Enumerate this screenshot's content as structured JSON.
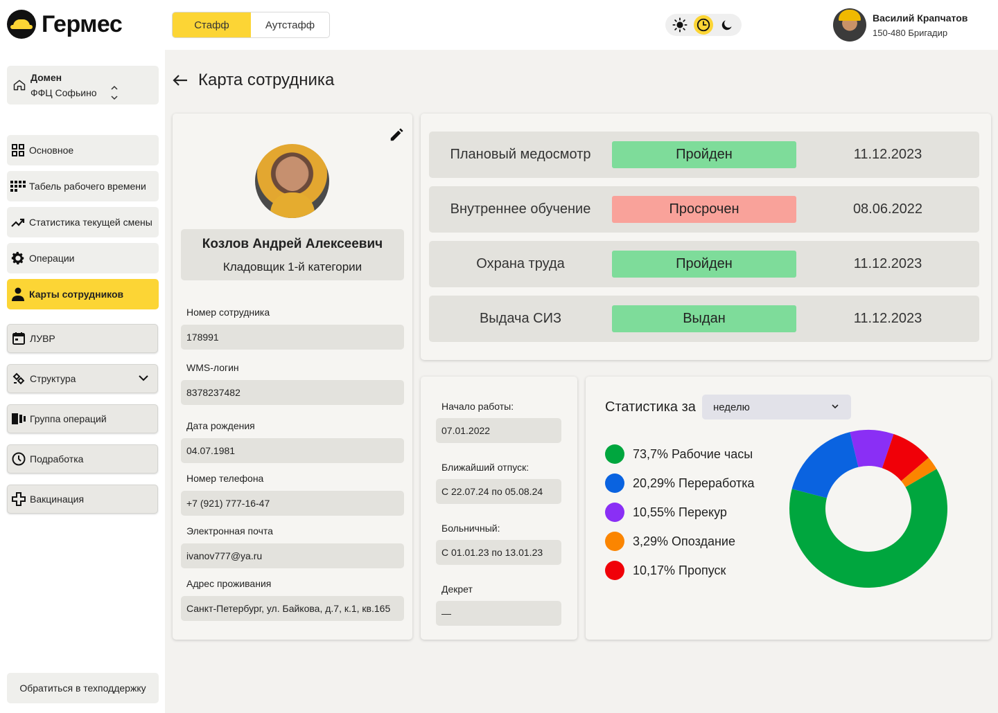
{
  "brand": {
    "name": "Гермес"
  },
  "header": {
    "tabs": [
      {
        "label": "Стафф",
        "active": true
      },
      {
        "label": "Аутстафф",
        "active": false
      }
    ],
    "theme_icons": [
      "sun-icon",
      "clock-icon",
      "moon-icon"
    ],
    "user": {
      "name": "Василий Крапчатов",
      "role": "150-480 Бригадир"
    }
  },
  "sidebar": {
    "domain": {
      "label": "Домен",
      "value": "ФФЦ Софьино"
    },
    "items": [
      {
        "label": "Основное",
        "icon": "grid-icon"
      },
      {
        "label": "Табель рабочего времени",
        "icon": "dots-grid-icon"
      },
      {
        "label": "Статистика текущей смены",
        "icon": "trending-up-icon"
      },
      {
        "label": "Операции",
        "icon": "gear-icon"
      },
      {
        "label": "Карты сотрудников",
        "icon": "person-icon",
        "active": true
      },
      {
        "label": "ЛУВР",
        "icon": "calendar-icon"
      },
      {
        "label": "Структура",
        "icon": "structure-icon"
      },
      {
        "label": "Группа операций",
        "icon": "group-icon"
      },
      {
        "label": "Подработка",
        "icon": "clock-icon"
      },
      {
        "label": "Вакцинация",
        "icon": "plus-cross-icon"
      }
    ],
    "support": "Обратиться в техподдержку"
  },
  "page": {
    "title": "Карта сотрудника"
  },
  "employee": {
    "name": "Козлов Андрей Алексеевич",
    "position": "Кладовщик 1-й категории",
    "fields": [
      {
        "label": "Номер сотрудника",
        "value": "178991"
      },
      {
        "label": "WMS-логин",
        "value": "8378237482"
      },
      {
        "label": "Дата рождения",
        "value": "04.07.1981"
      },
      {
        "label": "Номер телефона",
        "value": "+7 (921) 777-16-47"
      },
      {
        "label": "Электронная почта",
        "value": "ivanov777@ya.ru"
      },
      {
        "label": "Адрес проживания",
        "value": "Санкт-Петербург, ул. Байкова, д.7, к.1, кв.165"
      }
    ]
  },
  "checks": [
    {
      "title": "Плановый медосмотр",
      "status": "Пройден",
      "color": "#7edc9a",
      "date": "11.12.2023"
    },
    {
      "title": "Внутреннее обучение",
      "status": "Просрочен",
      "color": "#f9a29a",
      "date": "08.06.2022"
    },
    {
      "title": "Охрана труда",
      "status": "Пройден",
      "color": "#7edc9a",
      "date": "11.12.2023"
    },
    {
      "title": "Выдача СИЗ",
      "status": "Выдан",
      "color": "#7edc9a",
      "date": "11.12.2023"
    }
  ],
  "work_dates": [
    {
      "label": "Начало работы:",
      "value": "07.01.2022"
    },
    {
      "label": "Ближайший отпуск:",
      "value": "С 22.07.24 по 05.08.24"
    },
    {
      "label": "Больничный:",
      "value": "С 01.01.23 по 13.01.23"
    },
    {
      "label": "Декрет",
      "value": "—"
    }
  ],
  "stats": {
    "title": "Статистика за",
    "period": "неделю",
    "legend": [
      {
        "text": "73,7% Рабочие часы",
        "color": "#00a63e"
      },
      {
        "text": "20,29% Переработка",
        "color": "#0a63e0"
      },
      {
        "text": "10,55% Перекур",
        "color": "#8a2ff5"
      },
      {
        "text": "3,29% Опоздание",
        "color": "#fb8500"
      },
      {
        "text": "10,17% Пропуск",
        "color": "#f00008"
      }
    ]
  },
  "chart_data": {
    "type": "pie",
    "categories": [
      "Рабочие часы",
      "Переработка",
      "Перекур",
      "Опоздание",
      "Пропуск"
    ],
    "values": [
      73.7,
      20.29,
      10.55,
      3.29,
      10.17
    ],
    "colors": [
      "#00a63e",
      "#0a63e0",
      "#8a2ff5",
      "#fb8500",
      "#f00008"
    ],
    "donut": true
  }
}
